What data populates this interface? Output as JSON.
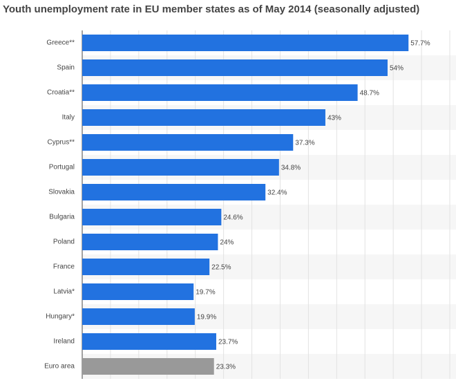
{
  "chart_data": {
    "type": "bar",
    "orientation": "horizontal",
    "title": "Youth unemployment rate in EU member states as of May 2014 (seasonally adjusted)",
    "categories": [
      "Greece**",
      "Spain",
      "Croatia**",
      "Italy",
      "Cyprus**",
      "Portugal",
      "Slovakia",
      "Bulgaria",
      "Poland",
      "France",
      "Latvia*",
      "Hungary*",
      "Ireland",
      "Euro area"
    ],
    "values": [
      57.7,
      54,
      48.7,
      43,
      37.3,
      34.8,
      32.4,
      24.6,
      24,
      22.5,
      19.7,
      19.9,
      23.7,
      23.3
    ],
    "value_labels": [
      "57.7%",
      "54%",
      "48.7%",
      "43%",
      "37.3%",
      "34.8%",
      "32.4%",
      "24.6%",
      "24%",
      "22.5%",
      "19.7%",
      "19.9%",
      "23.7%",
      "23.3%"
    ],
    "colors": [
      "#2272e0",
      "#2272e0",
      "#2272e0",
      "#2272e0",
      "#2272e0",
      "#2272e0",
      "#2272e0",
      "#2272e0",
      "#2272e0",
      "#2272e0",
      "#2272e0",
      "#2272e0",
      "#2272e0",
      "#999999"
    ],
    "xlim": [
      0,
      65
    ],
    "xticks": [
      0,
      5,
      10,
      15,
      20,
      25,
      30,
      35,
      40,
      45,
      50,
      55,
      60,
      65
    ],
    "grid": true
  }
}
